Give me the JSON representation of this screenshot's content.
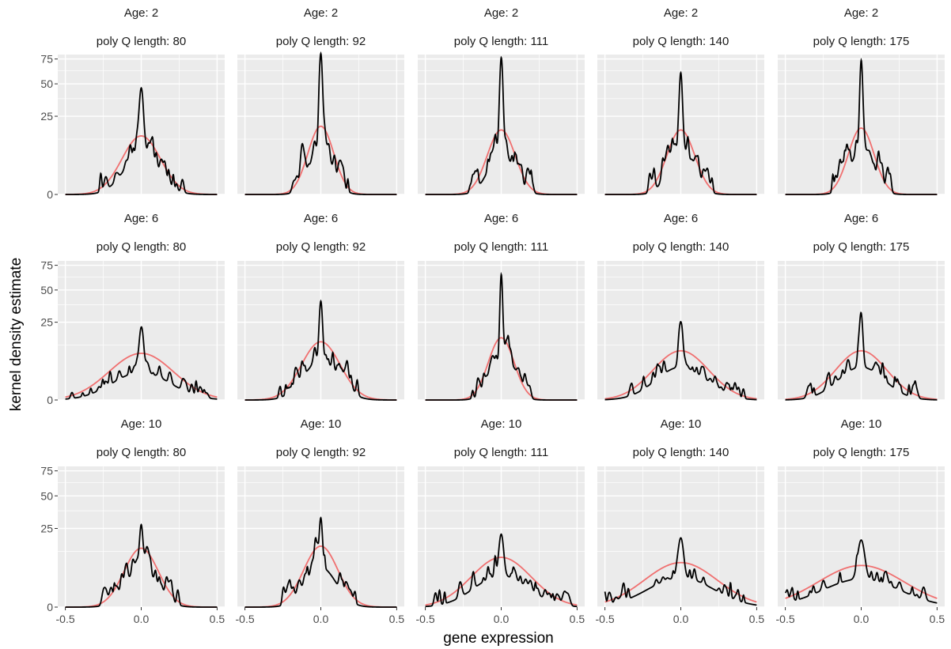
{
  "chart_data": {
    "type": "line",
    "xlabel": "gene expression",
    "ylabel": "kernel density estimate",
    "x_ticks": [
      "-0.5",
      "0.0",
      "0.5"
    ],
    "x_tick_values": [
      -0.5,
      0.0,
      0.5
    ],
    "y_ticks": [
      "0",
      "25",
      "50",
      "75"
    ],
    "y_tick_values": [
      0,
      25,
      50,
      75
    ],
    "xlim": [
      -0.5,
      0.5
    ],
    "ylim": [
      0,
      80
    ],
    "y_scale": "sqrt",
    "grid": true,
    "colors": {
      "kde": "#000000",
      "normal_fit": "#f07070",
      "panel_bg": "#ebebeb",
      "grid": "#ffffff"
    },
    "facets": [
      {
        "age_label": "Age: 2",
        "length_label": "poly Q length: 80",
        "kde_peak": 43,
        "kde_width": 0.012,
        "normal_peak": 14,
        "normal_sd": 0.09,
        "shoulder": 4,
        "rough_seed": 11
      },
      {
        "age_label": "Age: 2",
        "length_label": "poly Q length: 92",
        "kde_peak": 75,
        "kde_width": 0.01,
        "normal_peak": 19,
        "normal_sd": 0.06,
        "shoulder": 5,
        "rough_seed": 12
      },
      {
        "age_label": "Age: 2",
        "length_label": "poly Q length: 111",
        "kde_peak": 70,
        "kde_width": 0.01,
        "normal_peak": 17,
        "normal_sd": 0.065,
        "shoulder": 4.5,
        "rough_seed": 13
      },
      {
        "age_label": "Age: 2",
        "length_label": "poly Q length: 140",
        "kde_peak": 55,
        "kde_width": 0.01,
        "normal_peak": 17,
        "normal_sd": 0.065,
        "shoulder": 4.5,
        "rough_seed": 14
      },
      {
        "age_label": "Age: 2",
        "length_label": "poly Q length: 175",
        "kde_peak": 70,
        "kde_width": 0.009,
        "normal_peak": 18,
        "normal_sd": 0.06,
        "shoulder": 5,
        "rough_seed": 15
      },
      {
        "age_label": "Age: 6",
        "length_label": "poly Q length: 80",
        "kde_peak": 20,
        "kde_width": 0.013,
        "normal_peak": 9,
        "normal_sd": 0.15,
        "shoulder": 2,
        "rough_seed": 21
      },
      {
        "age_label": "Age: 6",
        "length_label": "poly Q length: 92",
        "kde_peak": 38,
        "kde_width": 0.01,
        "normal_peak": 14,
        "normal_sd": 0.09,
        "shoulder": 4,
        "rough_seed": 22
      },
      {
        "age_label": "Age: 6",
        "length_label": "poly Q length: 111",
        "kde_peak": 60,
        "kde_width": 0.008,
        "normal_peak": 16,
        "normal_sd": 0.06,
        "shoulder": 4,
        "rough_seed": 23
      },
      {
        "age_label": "Age: 6",
        "length_label": "poly Q length: 140",
        "kde_peak": 22,
        "kde_width": 0.012,
        "normal_peak": 10,
        "normal_sd": 0.13,
        "shoulder": 2.8,
        "rough_seed": 24
      },
      {
        "age_label": "Age: 6",
        "length_label": "poly Q length: 175",
        "kde_peak": 27,
        "kde_width": 0.01,
        "normal_peak": 10,
        "normal_sd": 0.12,
        "shoulder": 2.8,
        "rough_seed": 25
      },
      {
        "age_label": "Age: 10",
        "length_label": "poly Q length: 80",
        "kde_peak": 25,
        "kde_width": 0.01,
        "normal_peak": 14,
        "normal_sd": 0.08,
        "shoulder": 4,
        "rough_seed": 31
      },
      {
        "age_label": "Age: 10",
        "length_label": "poly Q length: 92",
        "kde_peak": 27,
        "kde_width": 0.01,
        "normal_peak": 15,
        "normal_sd": 0.08,
        "shoulder": 4,
        "rough_seed": 32
      },
      {
        "age_label": "Age: 10",
        "length_label": "poly Q length: 111",
        "kde_peak": 20,
        "kde_width": 0.014,
        "normal_peak": 10,
        "normal_sd": 0.14,
        "shoulder": 2.5,
        "rough_seed": 33
      },
      {
        "age_label": "Age: 10",
        "length_label": "poly Q length: 140",
        "kde_peak": 18,
        "kde_width": 0.016,
        "normal_peak": 8,
        "normal_sd": 0.17,
        "shoulder": 2.2,
        "rough_seed": 34
      },
      {
        "age_label": "Age: 10",
        "length_label": "poly Q length: 175",
        "kde_peak": 17,
        "kde_width": 0.02,
        "normal_peak": 7,
        "normal_sd": 0.2,
        "shoulder": 2,
        "rough_seed": 35
      }
    ]
  }
}
